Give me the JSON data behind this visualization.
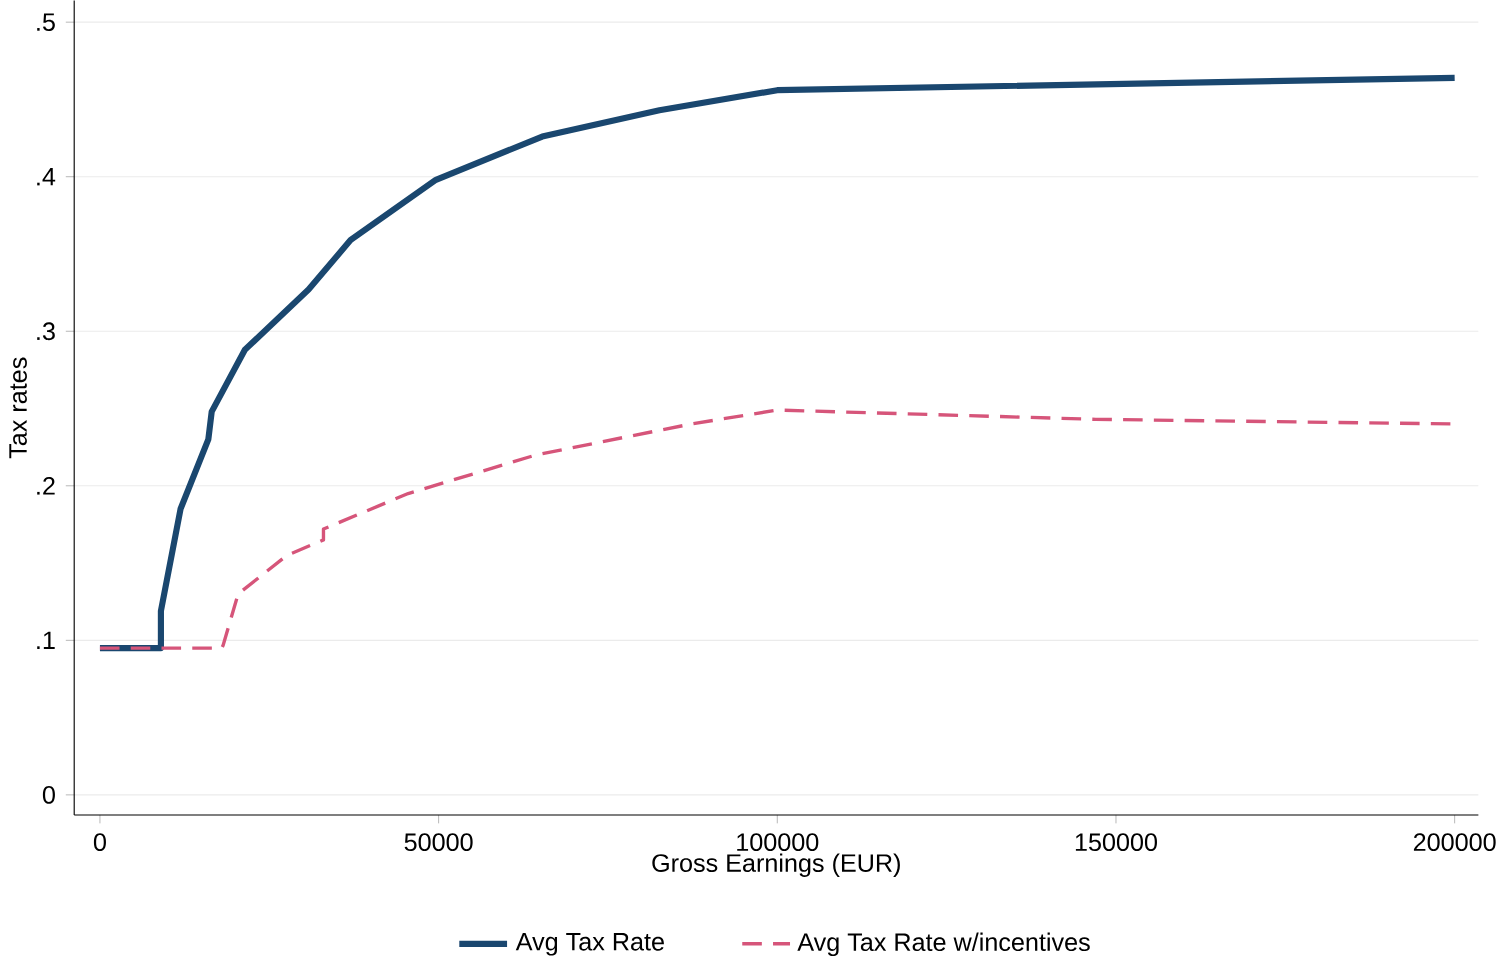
{
  "chart_data": {
    "type": "line",
    "xlabel": "Gross Earnings (EUR)",
    "ylabel": "Tax rates",
    "xlim": [
      -3800,
      203500
    ],
    "ylim": [
      -0.013,
      0.514
    ],
    "xticks": [
      0,
      50000,
      100000,
      150000,
      200000
    ],
    "yticks": [
      {
        "value": 0,
        "label": "0"
      },
      {
        "value": 0.1,
        "label": ".1"
      },
      {
        "value": 0.2,
        "label": ".2"
      },
      {
        "value": 0.3,
        "label": ".3"
      },
      {
        "value": 0.4,
        "label": ".4"
      },
      {
        "value": 0.5,
        "label": ".5"
      }
    ],
    "grid": "y",
    "legend": "bottom",
    "series": [
      {
        "name": "Avg Tax Rate",
        "color": "#1a476f",
        "line_style": "solid",
        "x": [
          0,
          9000,
          9000,
          11900,
          16000,
          16500,
          21400,
          30800,
          37000,
          49600,
          65300,
          82600,
          100000,
          200000
        ],
        "values": [
          0.095,
          0.095,
          0.119,
          0.185,
          0.23,
          0.248,
          0.288,
          0.327,
          0.359,
          0.398,
          0.426,
          0.443,
          0.456,
          0.464
        ]
      },
      {
        "name": "Avg Tax Rate w/incentives",
        "color": "#d6557a",
        "line_style": "dashed",
        "x": [
          0,
          18000,
          18200,
          20400,
          27600,
          33000,
          33000,
          45500,
          64400,
          87300,
          100000,
          147000,
          200000
        ],
        "values": [
          0.095,
          0.095,
          0.097,
          0.13,
          0.155,
          0.165,
          0.172,
          0.195,
          0.22,
          0.24,
          0.249,
          0.243,
          0.24
        ]
      }
    ]
  }
}
